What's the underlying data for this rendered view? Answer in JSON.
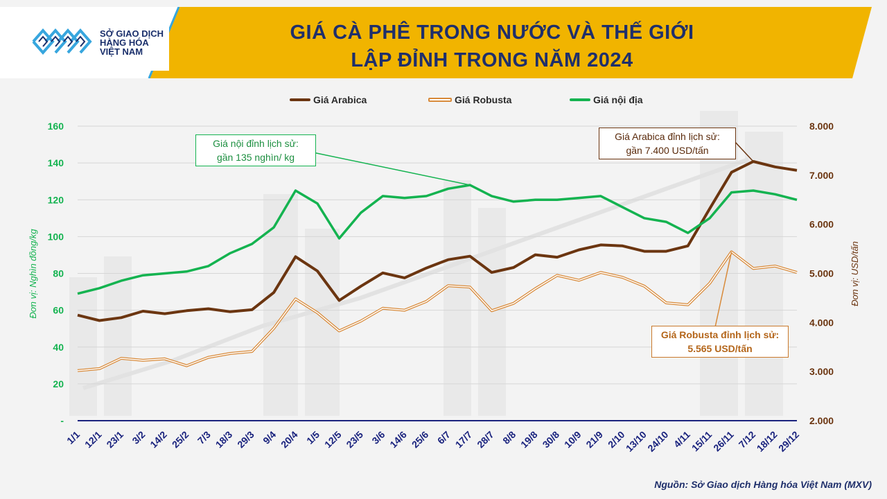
{
  "header": {
    "title_line1": "GIÁ CÀ PHÊ TRONG NƯỚC VÀ THẾ GIỚI",
    "title_line2": "LẬP ĐỈNH TRONG NĂM 2024"
  },
  "logo": {
    "line1": "SỞ GIAO DỊCH",
    "line2": "HÀNG HÓA",
    "line3": "VIỆT NAM"
  },
  "source": "Nguồn: Sở Giao dịch Hàng hóa Việt Nam (MXV)",
  "colors": {
    "arabica": "#6b3510",
    "robusta": "#d88a3a",
    "noi_dia": "#14b350",
    "title": "#1f2f6b",
    "banner": "#f1b400",
    "axis_dark": "#1a237e"
  },
  "annotations": {
    "noi_dia": {
      "line1": "Giá  nội đỉnh lịch sử:",
      "line2": "gần 135 nghìn/ kg"
    },
    "arabica": {
      "line1": "Giá Arabica đỉnh lịch sử:",
      "line2": "gần 7.400 USD/tấn"
    },
    "robusta": {
      "line1": "Giá Robusta đỉnh lịch sử:",
      "line2": "5.565  USD/tấn"
    }
  },
  "chart_data": {
    "type": "line",
    "title": "GIÁ CÀ PHÊ TRONG NƯỚC VÀ THẾ GIỚI LẬP ĐỈNH TRONG NĂM 2024",
    "xlabel": "",
    "y_left_label": "Đơn vị: Nghìn đồng/kg",
    "y_right_label": "Đơn vị: USD/tấn",
    "y_left_lim": [
      0,
      160
    ],
    "y_left_ticks": [
      "-",
      "20",
      "40",
      "60",
      "80",
      "100",
      "120",
      "140",
      "160"
    ],
    "y_right_lim": [
      2000,
      8000
    ],
    "y_right_ticks": [
      "2.000",
      "3.000",
      "4.000",
      "5.000",
      "6.000",
      "7.000",
      "8.000"
    ],
    "categories": [
      "1/1",
      "12/1",
      "23/1",
      "3/2",
      "14/2",
      "25/2",
      "7/3",
      "18/3",
      "29/3",
      "9/4",
      "20/4",
      "1/5",
      "12/5",
      "23/5",
      "3/6",
      "14/6",
      "25/6",
      "6/7",
      "17/7",
      "28/7",
      "8/8",
      "19/8",
      "30/8",
      "10/9",
      "21/9",
      "2/10",
      "13/10",
      "24/10",
      "4/11",
      "15/11",
      "26/11",
      "7/12",
      "18/12",
      "29/12"
    ],
    "legend": [
      "Giá Arabica",
      "Giá Robusta",
      "Giá nội địa"
    ],
    "series": [
      {
        "name": "Giá Arabica",
        "axis": "right",
        "values": [
          4150,
          4040,
          4100,
          4230,
          4180,
          4240,
          4280,
          4220,
          4260,
          4610,
          5340,
          5050,
          4450,
          4740,
          5010,
          4910,
          5110,
          5280,
          5350,
          5020,
          5120,
          5380,
          5330,
          5480,
          5580,
          5560,
          5450,
          5450,
          5560,
          6320,
          7060,
          7280,
          7170,
          7100
        ]
      },
      {
        "name": "Giá Robusta",
        "axis": "right",
        "values": [
          3020,
          3060,
          3270,
          3230,
          3260,
          3120,
          3290,
          3370,
          3410,
          3880,
          4480,
          4200,
          3830,
          4030,
          4290,
          4250,
          4430,
          4750,
          4720,
          4240,
          4390,
          4690,
          4960,
          4860,
          5020,
          4920,
          4740,
          4400,
          4360,
          4800,
          5440,
          5100,
          5150,
          5020
        ]
      },
      {
        "name": "Giá nội địa",
        "axis": "left",
        "values": [
          69,
          72,
          76,
          79,
          80,
          81,
          84,
          91,
          96,
          105,
          125,
          118,
          99,
          113,
          122,
          121,
          122,
          126,
          128,
          122,
          119,
          120,
          120,
          121,
          122,
          116,
          110,
          108,
          102,
          110,
          124,
          125,
          123,
          120
        ]
      }
    ]
  }
}
